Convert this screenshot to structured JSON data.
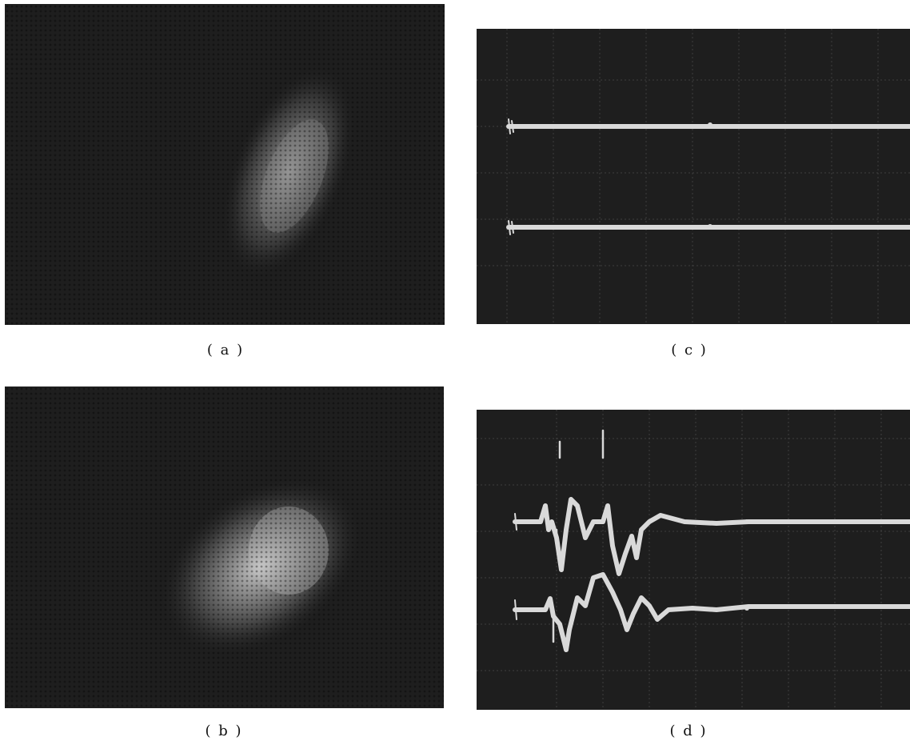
{
  "figure": {
    "panels": [
      {
        "id": "a",
        "caption": "( a )",
        "content": "diffuse-bright-spot"
      },
      {
        "id": "b",
        "caption": "( b )",
        "content": "bright-spot"
      },
      {
        "id": "c",
        "caption": "( c )",
        "content": "oscilloscope-flat-traces"
      },
      {
        "id": "d",
        "caption": "( d )",
        "content": "oscilloscope-pulse-traces"
      }
    ]
  },
  "colors": {
    "background": "#1e1e1e",
    "trace": "#d9d9d9",
    "grid": "#5a5a5a",
    "page": "#ffffff"
  }
}
